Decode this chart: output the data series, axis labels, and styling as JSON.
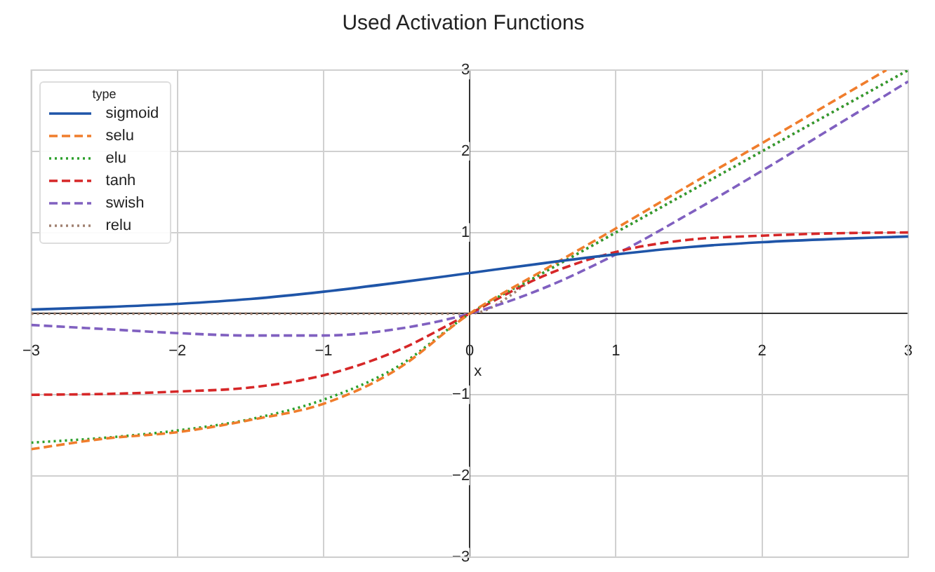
{
  "chart_data": {
    "type": "line",
    "title": "Used Activation Functions",
    "xlabel": "x",
    "legend_title": "type",
    "legend": "top left",
    "grid": true,
    "marker": "none",
    "x": [
      -3,
      -2.5,
      -2,
      -1.5,
      -1,
      -0.5,
      0,
      0.5,
      1,
      1.5,
      2,
      2.5,
      3
    ],
    "xlim": [
      -3,
      3
    ],
    "ylim": [
      -3,
      3
    ],
    "xticks": [
      -3,
      -2,
      -1,
      0,
      1,
      2,
      3
    ],
    "yticks": [
      -3,
      -2,
      -1,
      {
        "value": 0,
        "label": null
      },
      1,
      2,
      3
    ],
    "series": [
      {
        "name": "sigmoid",
        "color": "#1f55a8",
        "line_style": "solid",
        "values": [
          0.05,
          0.08,
          0.12,
          0.18,
          0.27,
          0.38,
          0.5,
          0.62,
          0.73,
          0.82,
          0.88,
          0.92,
          0.95
        ]
      },
      {
        "name": "selu",
        "color": "#f07d2c",
        "line_style": "dashed",
        "x": [
          -3,
          -2.5,
          -2,
          -1.5,
          -1,
          -0.5,
          0,
          0.5,
          1,
          1.5,
          2,
          2.5,
          2.85
        ],
        "values": [
          -1.67,
          -1.54,
          -1.46,
          -1.31,
          -1.11,
          -0.69,
          0,
          0.53,
          1.05,
          1.58,
          2.1,
          2.63,
          3
        ]
      },
      {
        "name": "elu",
        "color": "#2ca02c",
        "line_style": "dotted",
        "values": [
          -1.59,
          -1.53,
          -1.44,
          -1.3,
          -1.06,
          -0.66,
          0,
          0.5,
          1,
          1.5,
          2,
          2.5,
          3
        ]
      },
      {
        "name": "tanh",
        "color": "#d62728",
        "line_style": "dashed",
        "values": [
          -1,
          -0.99,
          -0.96,
          -0.91,
          -0.76,
          -0.46,
          0,
          0.46,
          0.76,
          0.91,
          0.96,
          0.99,
          1
        ]
      },
      {
        "name": "swish",
        "color": "#8060c0",
        "line_style": "dashed",
        "values": [
          -0.14,
          -0.19,
          -0.24,
          -0.27,
          -0.27,
          -0.19,
          0,
          0.31,
          0.73,
          1.23,
          1.76,
          2.31,
          2.86
        ]
      },
      {
        "name": "relu",
        "color": "#a08070",
        "line_style": "dotted",
        "values": [
          0,
          0,
          0,
          0,
          0,
          0,
          0,
          0.5,
          1,
          1.5,
          2,
          2.5,
          3
        ]
      }
    ]
  }
}
